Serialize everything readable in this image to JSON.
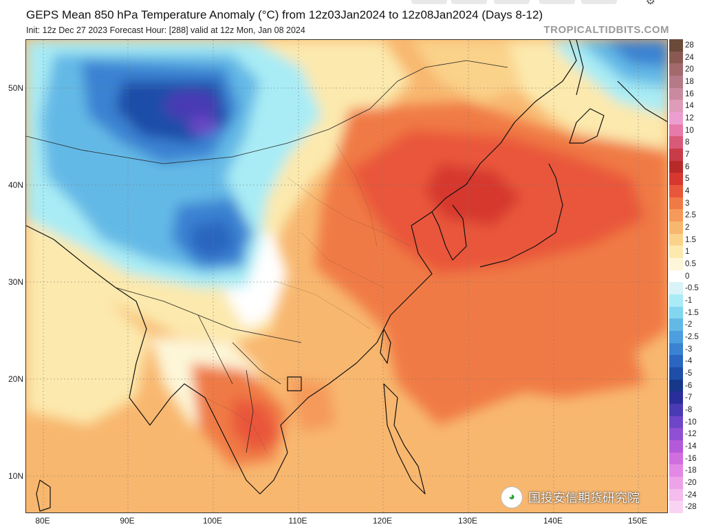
{
  "header": {
    "title": "GEPS Mean 850 hPa Temperature Anomaly (°C) from 12z03Jan2024 to 12z08Jan2024 (Days 8-12)",
    "subtitle": "Init: 12z Dec 27 2023   Forecast Hour: [288]   valid at 12z Mon, Jan 08 2024",
    "site": "TROPICALTIDBITS.COM"
  },
  "axes": {
    "latitudes": [
      "50N",
      "40N",
      "30N",
      "20N",
      "10N"
    ],
    "longitudes": [
      "80E",
      "90E",
      "100E",
      "110E",
      "120E",
      "130E",
      "140E",
      "150E"
    ]
  },
  "colorbar": {
    "labels": [
      "28",
      "24",
      "20",
      "18",
      "16",
      "14",
      "12",
      "10",
      "8",
      "7",
      "6",
      "5",
      "4",
      "3",
      "2.5",
      "2",
      "1.5",
      "1",
      "0.5",
      "0",
      "-0.5",
      "-1",
      "-1.5",
      "-2",
      "-2.5",
      "-3",
      "-4",
      "-5",
      "-6",
      "-7",
      "-8",
      "-10",
      "-12",
      "-14",
      "-16",
      "-18",
      "-20",
      "-24",
      "-28"
    ],
    "colors": [
      "#6b4a3a",
      "#8a5a52",
      "#a36a6e",
      "#b57a88",
      "#c98aa0",
      "#dd9cb8",
      "#ec9ed0",
      "#e67aa8",
      "#d85a78",
      "#c83c48",
      "#b82a2a",
      "#d6372f",
      "#e9573a",
      "#f07a45",
      "#f59a5a",
      "#f8b76f",
      "#fad28a",
      "#fce9ad",
      "#fdf6d8",
      "#ffffff",
      "#d8f4f8",
      "#a9ecf5",
      "#82d6ef",
      "#63b9e6",
      "#4c9ede",
      "#3a82d2",
      "#2b66c0",
      "#1f4ea8",
      "#17378a",
      "#2a2e9a",
      "#4a3bb4",
      "#6e46c8",
      "#9050d4",
      "#b45ad8",
      "#d06ee0",
      "#e388e4",
      "#eea2e8",
      "#f4bdee",
      "#f8d4f2"
    ]
  },
  "map": {
    "regions_shown": "East Asia",
    "units": "°C"
  },
  "watermark": {
    "icon": "wechat-icon",
    "text": "国投安信期货研究院"
  }
}
